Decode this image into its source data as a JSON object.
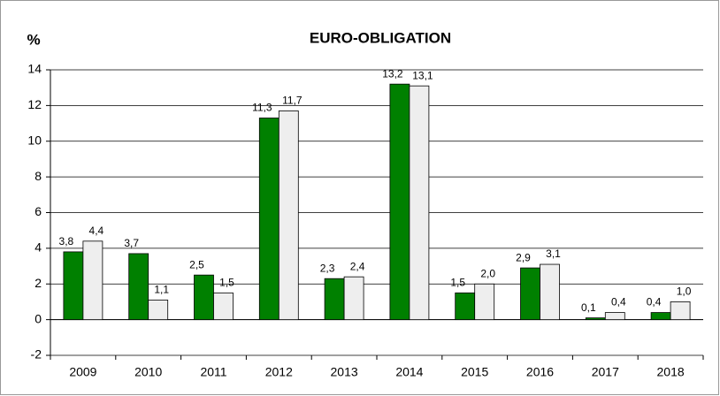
{
  "chart_data": {
    "type": "bar",
    "title": "EURO-OBLIGATION",
    "ylabel": "%",
    "categories": [
      "2009",
      "2010",
      "2011",
      "2012",
      "2013",
      "2014",
      "2015",
      "2016",
      "2017",
      "2018"
    ],
    "series": [
      {
        "color": "#008000",
        "values": [
          3.8,
          3.7,
          2.5,
          11.3,
          2.3,
          13.2,
          1.5,
          2.9,
          0.1,
          0.4
        ],
        "value_labels": [
          "3,8",
          "3,7",
          "2,5",
          "11,3",
          "2,3",
          "13,2",
          "1,5",
          "2,9",
          "0,1",
          "0,4"
        ]
      },
      {
        "color": "#eeeeee",
        "values": [
          4.4,
          1.1,
          1.5,
          11.7,
          2.4,
          13.1,
          2.0,
          3.1,
          0.4,
          1.0
        ],
        "value_labels": [
          "4,4",
          "1,1",
          "1,5",
          "11,7",
          "2,4",
          "13,1",
          "2,0",
          "3,1",
          "0,4",
          "1,0"
        ]
      }
    ],
    "ylim": [
      -2,
      14
    ],
    "yticks": [
      -2,
      0,
      2,
      4,
      6,
      8,
      10,
      12,
      14
    ],
    "grid": true
  }
}
